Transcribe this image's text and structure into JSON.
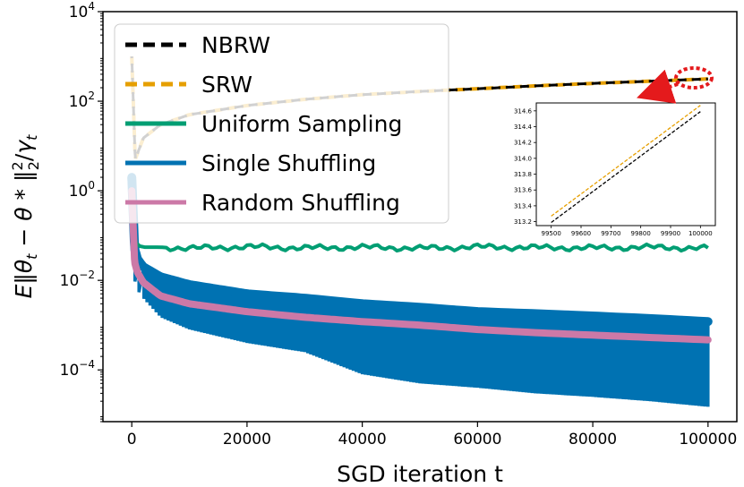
{
  "chart_data": [
    {
      "type": "line",
      "xlabel": "SGD iteration t",
      "ylabel": "E‖θ_t − θ*‖₂²/γ_t",
      "yscale": "log",
      "xlim": [
        -5000,
        105000
      ],
      "ylim": [
        7e-06,
        10000
      ],
      "x_ticks": [
        0,
        20000,
        40000,
        60000,
        80000,
        100000
      ],
      "x_tick_labels": [
        "0",
        "20000",
        "40000",
        "60000",
        "80000",
        "100000"
      ],
      "y_ticks": [
        0.0001,
        0.01,
        1,
        100,
        10000
      ],
      "y_tick_labels": [
        "10^-4",
        "10^-2",
        "10^0",
        "10^2",
        "10^4"
      ],
      "grid": false,
      "legend_position": "top-left",
      "series": [
        {
          "name": "NBRW",
          "style": "dashed",
          "color": "#000000",
          "x": [
            0,
            600,
            2000,
            5000,
            10000,
            20000,
            30000,
            40000,
            50000,
            60000,
            70000,
            80000,
            90000,
            100000
          ],
          "y": [
            1000,
            5,
            15,
            30,
            50,
            80,
            110,
            140,
            165,
            190,
            220,
            250,
            280,
            314.6
          ]
        },
        {
          "name": "SRW",
          "style": "dashed",
          "color": "#E69F00",
          "x": [
            0,
            600,
            2000,
            5000,
            10000,
            20000,
            30000,
            40000,
            50000,
            60000,
            70000,
            80000,
            90000,
            100000
          ],
          "y": [
            1000,
            5,
            15,
            30,
            50,
            80,
            110,
            140,
            165,
            190,
            220,
            250,
            280,
            314.7
          ]
        },
        {
          "name": "Uniform Sampling",
          "style": "solid",
          "color": "#009E73",
          "x": [
            0,
            500,
            1000,
            2000,
            5000,
            10000,
            20000,
            30000,
            40000,
            50000,
            60000,
            70000,
            80000,
            90000,
            100000
          ],
          "y": [
            0.5,
            0.08,
            0.06,
            0.055,
            0.055,
            0.052,
            0.056,
            0.053,
            0.055,
            0.052,
            0.056,
            0.054,
            0.053,
            0.055,
            0.052
          ]
        },
        {
          "name": "Single Shuffling",
          "style": "solid",
          "color": "#0072B2",
          "x": [
            0,
            500,
            1000,
            2000,
            5000,
            10000,
            20000,
            30000,
            40000,
            50000,
            60000,
            70000,
            80000,
            90000,
            100000
          ],
          "y_upper": [
            2,
            0.05,
            0.03,
            0.02,
            0.012,
            0.008,
            0.005,
            0.004,
            0.003,
            0.0025,
            0.002,
            0.0018,
            0.0016,
            0.0014,
            0.0012
          ],
          "y_lower": [
            0.5,
            0.01,
            0.006,
            0.004,
            0.0015,
            0.0008,
            0.0004,
            0.00025,
            8e-05,
            5e-05,
            4e-05,
            3e-05,
            2.5e-05,
            2e-05,
            1.5e-05
          ]
        },
        {
          "name": "Random Shuffling",
          "style": "solid",
          "color": "#CC79A7",
          "x": [
            0,
            500,
            1000,
            2000,
            5000,
            10000,
            20000,
            30000,
            40000,
            50000,
            60000,
            70000,
            80000,
            90000,
            100000
          ],
          "y": [
            1,
            0.025,
            0.015,
            0.009,
            0.0045,
            0.003,
            0.002,
            0.0015,
            0.0012,
            0.001,
            0.0008,
            0.00068,
            0.0006,
            0.00053,
            0.00047
          ]
        }
      ]
    },
    {
      "type": "line",
      "role": "inset",
      "xlim": [
        99450,
        100050
      ],
      "ylim": [
        313.15,
        314.7
      ],
      "x_ticks": [
        99500,
        99600,
        99700,
        99800,
        99900,
        100000
      ],
      "x_tick_labels": [
        "99500",
        "99600",
        "99700",
        "99800",
        "99900",
        "100000"
      ],
      "y_ticks": [
        313.2,
        313.4,
        313.6,
        313.8,
        314.0,
        314.2,
        314.4,
        314.6
      ],
      "y_tick_labels": [
        "313.2",
        "313.4",
        "313.6",
        "313.8",
        "314.0",
        "314.2",
        "314.4",
        "314.6"
      ],
      "series": [
        {
          "ref": "SRW",
          "style": "dashed",
          "color": "#E69F00",
          "x": [
            99500,
            100000
          ],
          "y": [
            313.27,
            314.67
          ]
        },
        {
          "ref": "NBRW",
          "style": "dashed",
          "color": "#000000",
          "x": [
            99500,
            100000
          ],
          "y": [
            313.19,
            314.59
          ]
        }
      ]
    }
  ],
  "annotation": {
    "highlight_color": "#E41A1C"
  }
}
